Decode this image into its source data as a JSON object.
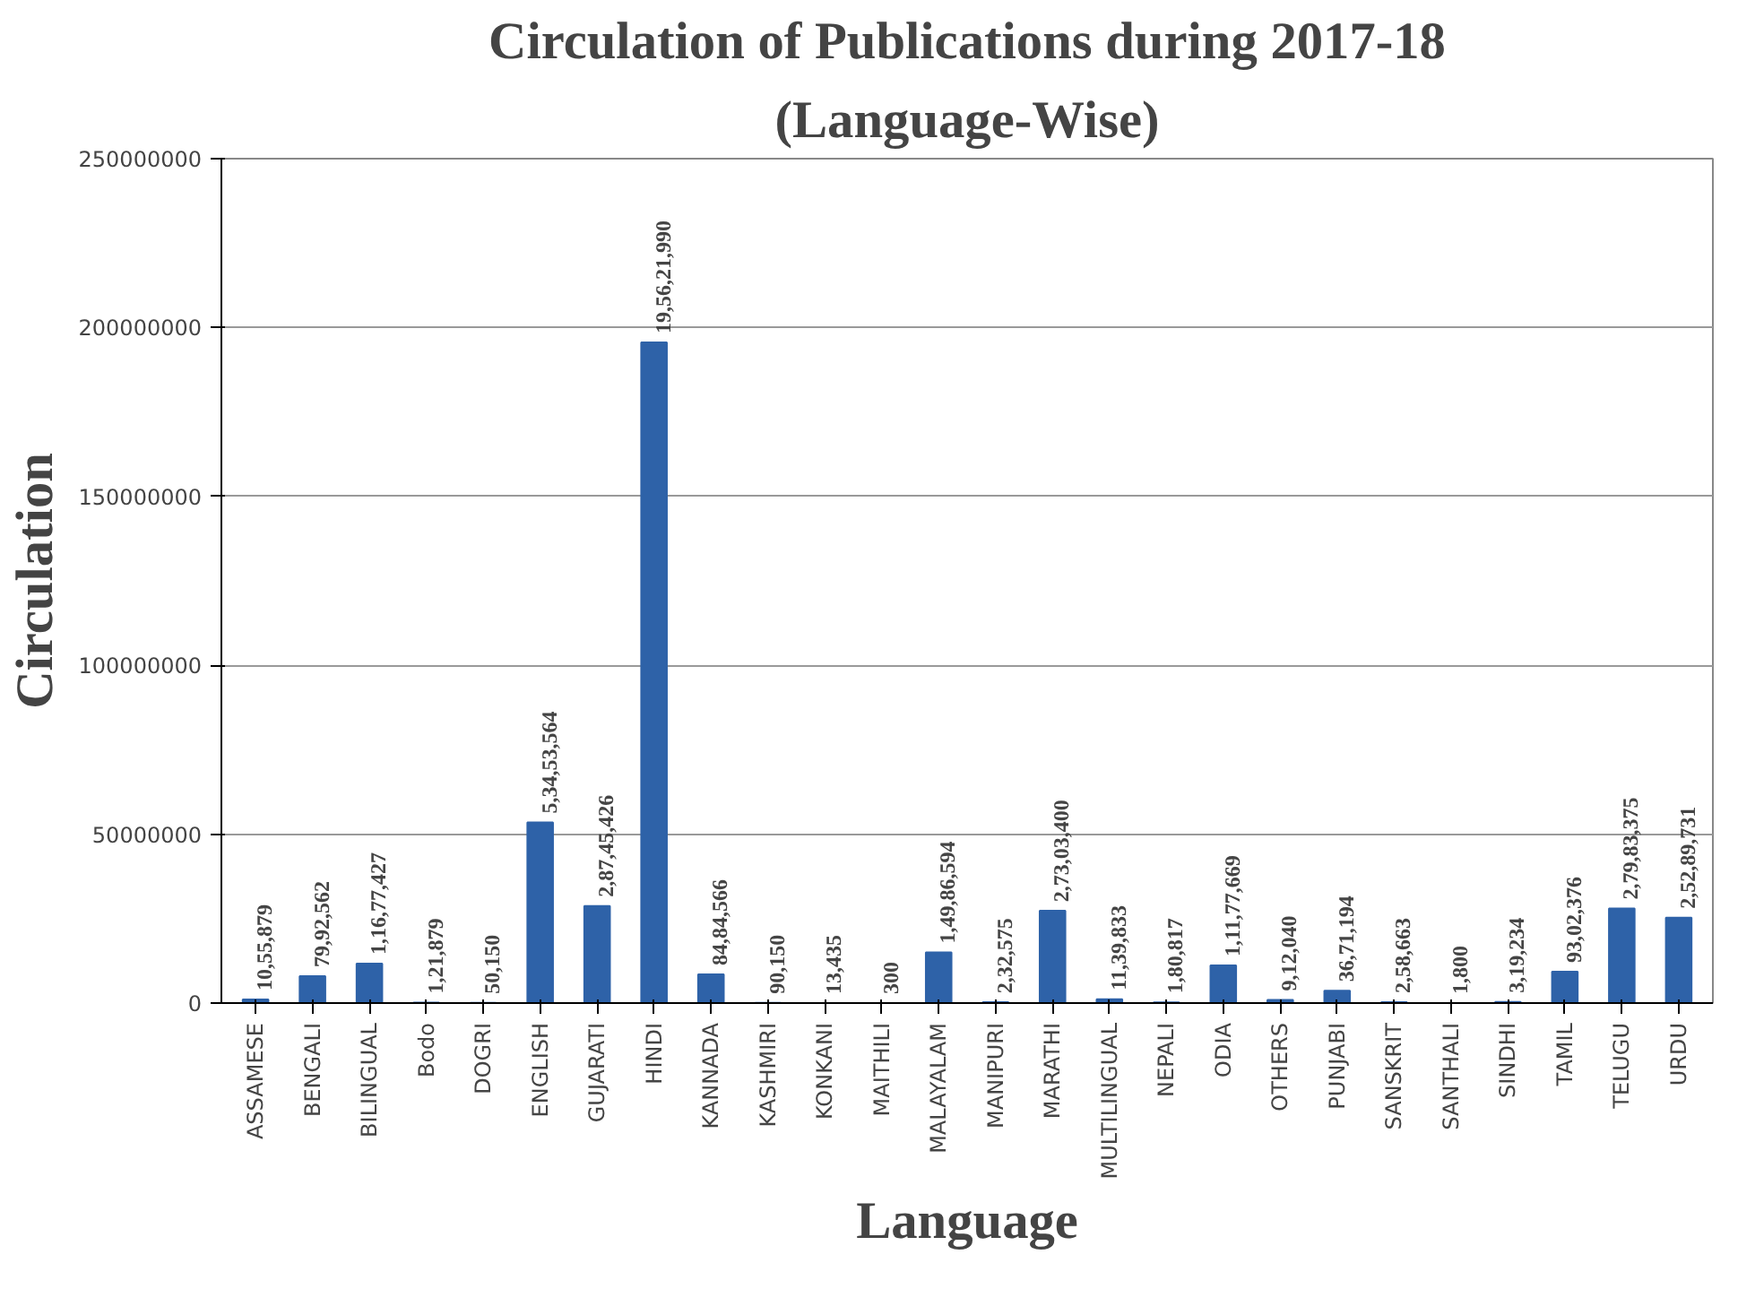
{
  "chart_data": {
    "type": "bar",
    "title": "Circulation of Publications during 2017-18",
    "subtitle": "(Language-Wise)",
    "xlabel": "Language",
    "ylabel": "Circulation",
    "categories": [
      "ASSAMESE",
      "BENGALI",
      "BILINGUAL",
      "Bodo",
      "DOGRI",
      "ENGLISH",
      "GUJARATI",
      "HINDI",
      "KANNADA",
      "KASHMIRI",
      "KONKANI",
      "MAITHILI",
      "MALAYALAM",
      "MANIPURI",
      "MARATHI",
      "MULTILINGUAL",
      "NEPALI",
      "ODIA",
      "OTHERS",
      "PUNJABI",
      "SANSKRIT",
      "SANTHALI",
      "SINDHI",
      "TAMIL",
      "TELUGU",
      "URDU"
    ],
    "values": [
      1055879,
      7992562,
      11677427,
      121879,
      50150,
      53453564,
      28745426,
      195621990,
      8484566,
      90150,
      13435,
      300,
      14986594,
      232575,
      27303400,
      1139833,
      180817,
      11177669,
      912040,
      3671194,
      258663,
      1800,
      319234,
      9302376,
      27983375,
      25289731
    ],
    "value_labels": [
      "10,55,879",
      "79,92,562",
      "1,16,77,427",
      "1,21,879",
      "50,150",
      "5,34,53,564",
      "2,87,45,426",
      "19,56,21,990",
      "84,84,566",
      "90,150",
      "13,435",
      "300",
      "1,49,86,594",
      "2,32,575",
      "2,73,03,400",
      "11,39,833",
      "1,80,817",
      "1,11,77,669",
      "9,12,040",
      "36,71,194",
      "2,58,663",
      "1,800",
      "3,19,234",
      "93,02,376",
      "2,79,83,375",
      "2,52,89,731"
    ],
    "color": "#2e62a8",
    "ylim": [
      0,
      250000000
    ],
    "yticks": [
      0,
      50000000,
      100000000,
      150000000,
      200000000,
      250000000
    ],
    "grid": "y"
  }
}
